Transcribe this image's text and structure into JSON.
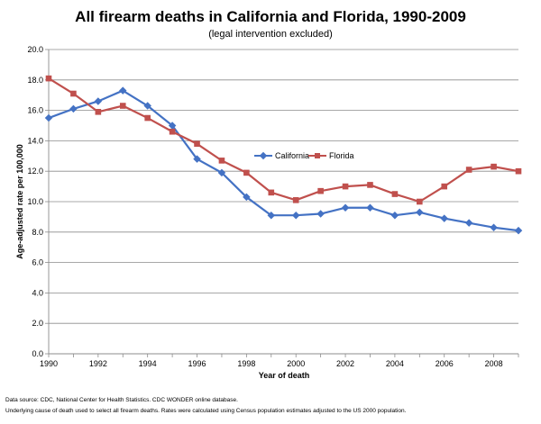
{
  "chart_data": {
    "type": "line",
    "title": "All firearm deaths in California and Florida, 1990-2009",
    "subtitle": "(legal intervention excluded)",
    "xlabel": "Year of death",
    "ylabel": "Age-adjusted rate per 100,000",
    "x": [
      1990,
      1991,
      1992,
      1993,
      1994,
      1995,
      1996,
      1997,
      1998,
      1999,
      2000,
      2001,
      2002,
      2003,
      2004,
      2005,
      2006,
      2007,
      2008,
      2009
    ],
    "x_tick_labels": [
      "1990",
      "1992",
      "1994",
      "1996",
      "1998",
      "2000",
      "2002",
      "2004",
      "2006",
      "2008"
    ],
    "y_tick_labels": [
      "0.0",
      "2.0",
      "4.0",
      "6.0",
      "8.0",
      "10.0",
      "12.0",
      "14.0",
      "16.0",
      "18.0",
      "20.0"
    ],
    "xlim": [
      1990,
      2009
    ],
    "ylim": [
      0,
      20
    ],
    "grid": true,
    "legend_position": "center-right",
    "series": [
      {
        "name": "California",
        "color": "#4472C4",
        "marker": "diamond",
        "values": [
          15.5,
          16.1,
          16.6,
          17.3,
          16.3,
          15.0,
          12.8,
          11.9,
          10.3,
          9.1,
          9.1,
          9.2,
          9.6,
          9.6,
          9.1,
          9.3,
          8.9,
          8.6,
          8.3,
          8.1
        ]
      },
      {
        "name": "Florida",
        "color": "#C0504D",
        "marker": "square",
        "values": [
          18.1,
          17.1,
          15.9,
          16.3,
          15.5,
          14.6,
          13.8,
          12.7,
          11.9,
          10.6,
          10.1,
          10.7,
          11.0,
          11.1,
          10.5,
          10.0,
          11.0,
          12.1,
          12.3,
          12.0
        ]
      }
    ]
  },
  "footnotes": {
    "source": "Data source:  CDC, National Center for Health Statistics.  CDC WONDER online database.",
    "method": "Underlying cause of death used to select all firearm deaths.  Rates were calculated using Census population estimates adjusted to the US 2000 population."
  }
}
